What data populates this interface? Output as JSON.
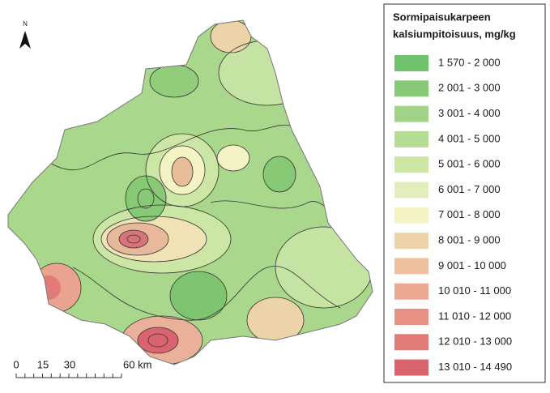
{
  "north_arrow": {
    "label": "N"
  },
  "legend": {
    "title": [
      "Sormipaisukarpeen",
      "kalsiumpitoisuus, mg/kg"
    ],
    "items": [
      {
        "label": "1 570 - 2 000",
        "color": "#6fc26d"
      },
      {
        "label": "2 001 - 3 000",
        "color": "#88c975"
      },
      {
        "label": "3 001 - 4 000",
        "color": "#a0d385"
      },
      {
        "label": "4 001 - 5 000",
        "color": "#b5dc93"
      },
      {
        "label": "5 001 - 6 000",
        "color": "#cbe6a5"
      },
      {
        "label": "6 001 - 7 000",
        "color": "#e2efbd"
      },
      {
        "label": "7 001 - 8 000",
        "color": "#f4f3c4"
      },
      {
        "label": "8 001 - 9 000",
        "color": "#ecd4a8"
      },
      {
        "label": "9 001 - 10 000",
        "color": "#efc09d"
      },
      {
        "label": "10 010 - 11 000",
        "color": "#eca791"
      },
      {
        "label": "11 010 - 12 000",
        "color": "#e79183"
      },
      {
        "label": "12 010 - 13 000",
        "color": "#e07b78"
      },
      {
        "label": "13 010 - 14 490",
        "color": "#d9646f"
      }
    ]
  },
  "scale_bar": {
    "labels": [
      "0",
      "15",
      "30",
      "60 km"
    ]
  }
}
